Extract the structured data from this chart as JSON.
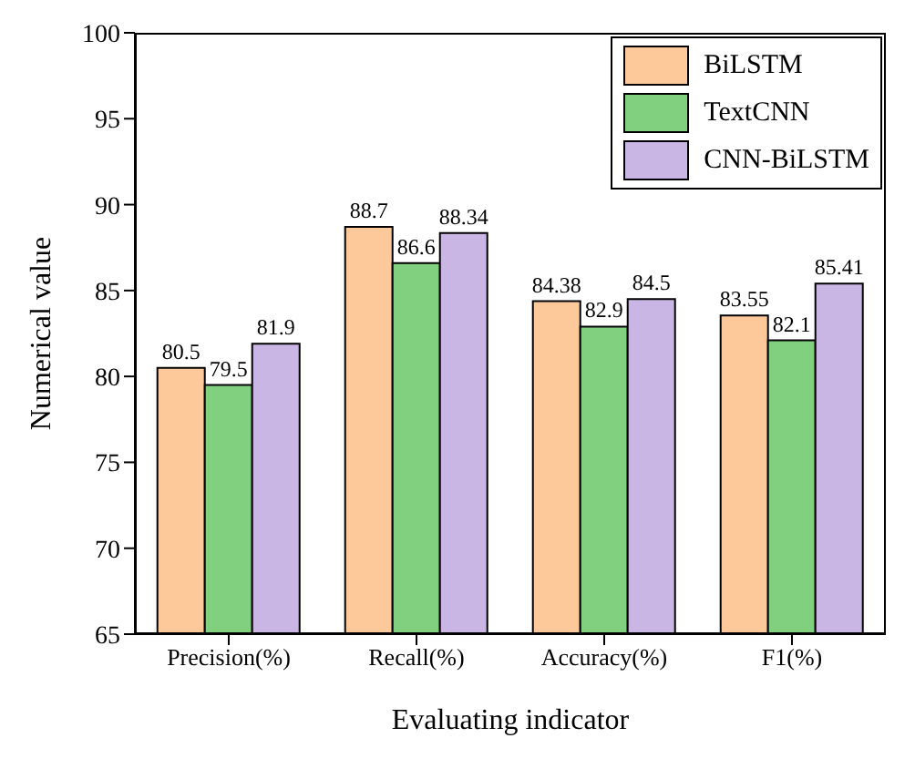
{
  "chart_data": {
    "type": "bar",
    "xlabel": "Evaluating indicator",
    "ylabel": "Numerical value",
    "categories": [
      "Precision(%)",
      "Recall(%)",
      "Accuracy(%)",
      "F1(%)"
    ],
    "series": [
      {
        "name": "BiLSTM",
        "color": "#fdc99b",
        "values": [
          80.5,
          88.7,
          84.38,
          83.55
        ]
      },
      {
        "name": "TextCNN",
        "color": "#80d080",
        "values": [
          79.5,
          86.6,
          82.9,
          82.1
        ]
      },
      {
        "name": "CNN-BiLSTM",
        "color": "#c9b6e4",
        "values": [
          81.9,
          88.34,
          84.5,
          85.41
        ]
      }
    ],
    "ylim": [
      65,
      100
    ],
    "yticks": [
      65,
      70,
      75,
      80,
      85,
      90,
      95,
      100
    ],
    "grid": false,
    "legend": "top right",
    "data_labels": true
  }
}
